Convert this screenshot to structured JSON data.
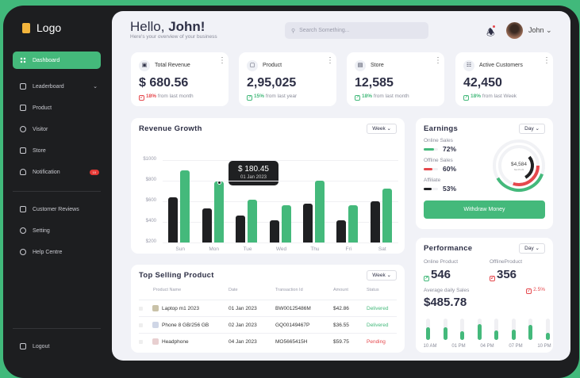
{
  "sidebar": {
    "logo": "Logo",
    "items": [
      {
        "label": "Dashboard",
        "active": true
      },
      {
        "label": "Leaderboard",
        "chevron": "⌄"
      },
      {
        "label": "Product"
      },
      {
        "label": "Visitor"
      },
      {
        "label": "Store"
      },
      {
        "label": "Notification",
        "badge": "10"
      }
    ],
    "secondary": [
      {
        "label": "Customer Reviews"
      },
      {
        "label": "Setting"
      },
      {
        "label": "Help Centre"
      }
    ],
    "logout": "Logout"
  },
  "header": {
    "greeting": "Hello,",
    "name": "John!",
    "subtitle": "Here's your overview of your business",
    "search_placeholder": "Search Something...",
    "user": "John"
  },
  "stats": [
    {
      "label": "Total Revenue",
      "value": "$ 680.56",
      "pct": "18%",
      "note": "from last month",
      "trend": "down"
    },
    {
      "label": "Product",
      "value": "2,95,025",
      "pct": "15%",
      "note": "from last year",
      "trend": "up"
    },
    {
      "label": "Store",
      "value": "12,585",
      "pct": "18%",
      "note": "from last month",
      "trend": "up"
    },
    {
      "label": "Active Customers",
      "value": "42,450",
      "pct": "18%",
      "note": "from last Week",
      "trend": "up"
    }
  ],
  "chart_data": {
    "type": "bar",
    "title": "Revenue Growth",
    "period": "Week",
    "categories": [
      "Sun",
      "Mon",
      "Tue",
      "Wed",
      "Thu",
      "Fri",
      "Sat"
    ],
    "series": [
      {
        "name": "series-dark",
        "color": "#1f2022",
        "values": [
          640,
          530,
          460,
          415,
          575,
          415,
          600
        ]
      },
      {
        "name": "series-green",
        "color": "#44b97b",
        "values": [
          900,
          790,
          615,
          560,
          800,
          560,
          720
        ]
      }
    ],
    "yticks": [
      "$1000",
      "$800",
      "$600",
      "$400",
      "$200"
    ],
    "ylim": [
      200,
      1000
    ],
    "tooltip": {
      "value": "$ 180.45",
      "date": "01 Jan 2023"
    }
  },
  "top_selling": {
    "title": "Top Selling Product",
    "period": "Week",
    "columns": [
      "Product Name",
      "Date",
      "Transaction Id",
      "Amount",
      "Status"
    ],
    "rows": [
      {
        "name": "Laptop m1 2023",
        "date": "01 Jan 2023",
        "txn": "BW00125486M",
        "amount": "$42.86",
        "status": "Delivered"
      },
      {
        "name": "Phone 8 GB/256 GB",
        "date": "02 Jan 2023",
        "txn": "GQ00149467P",
        "amount": "$36.55",
        "status": "Delivered"
      },
      {
        "name": "Headphone",
        "date": "04 Jan 2023",
        "txn": "MO5665415H",
        "amount": "$59.75",
        "status": "Pending"
      }
    ]
  },
  "earnings": {
    "title": "Earnings",
    "period": "Day",
    "items": [
      {
        "label": "Online Sales",
        "pct": "72%",
        "color": "#44b97b",
        "fill": 0.72
      },
      {
        "label": "Offline Sales",
        "pct": "60%",
        "color": "#e5484d",
        "fill": 0.6
      },
      {
        "label": "Affiliate",
        "pct": "53%",
        "color": "#1f2022",
        "fill": 0.53
      }
    ],
    "total": "$4,584",
    "total_label": "Net Profit",
    "button": "Withdraw Money"
  },
  "performance": {
    "title": "Performance",
    "period": "Day",
    "online_label": "Online Product",
    "online": "546",
    "offline_label": "OfflineProduct",
    "offline": "356",
    "avg_label": "Average daily Sales",
    "avg": "$485.78",
    "change": "2.5%",
    "bars": [
      0.6,
      0.6,
      0.4,
      0.75,
      0.45,
      0.5,
      0.7,
      0.35
    ],
    "times": [
      "10 AM",
      "01 PM",
      "04 PM",
      "07 PM",
      "10 PM"
    ]
  }
}
